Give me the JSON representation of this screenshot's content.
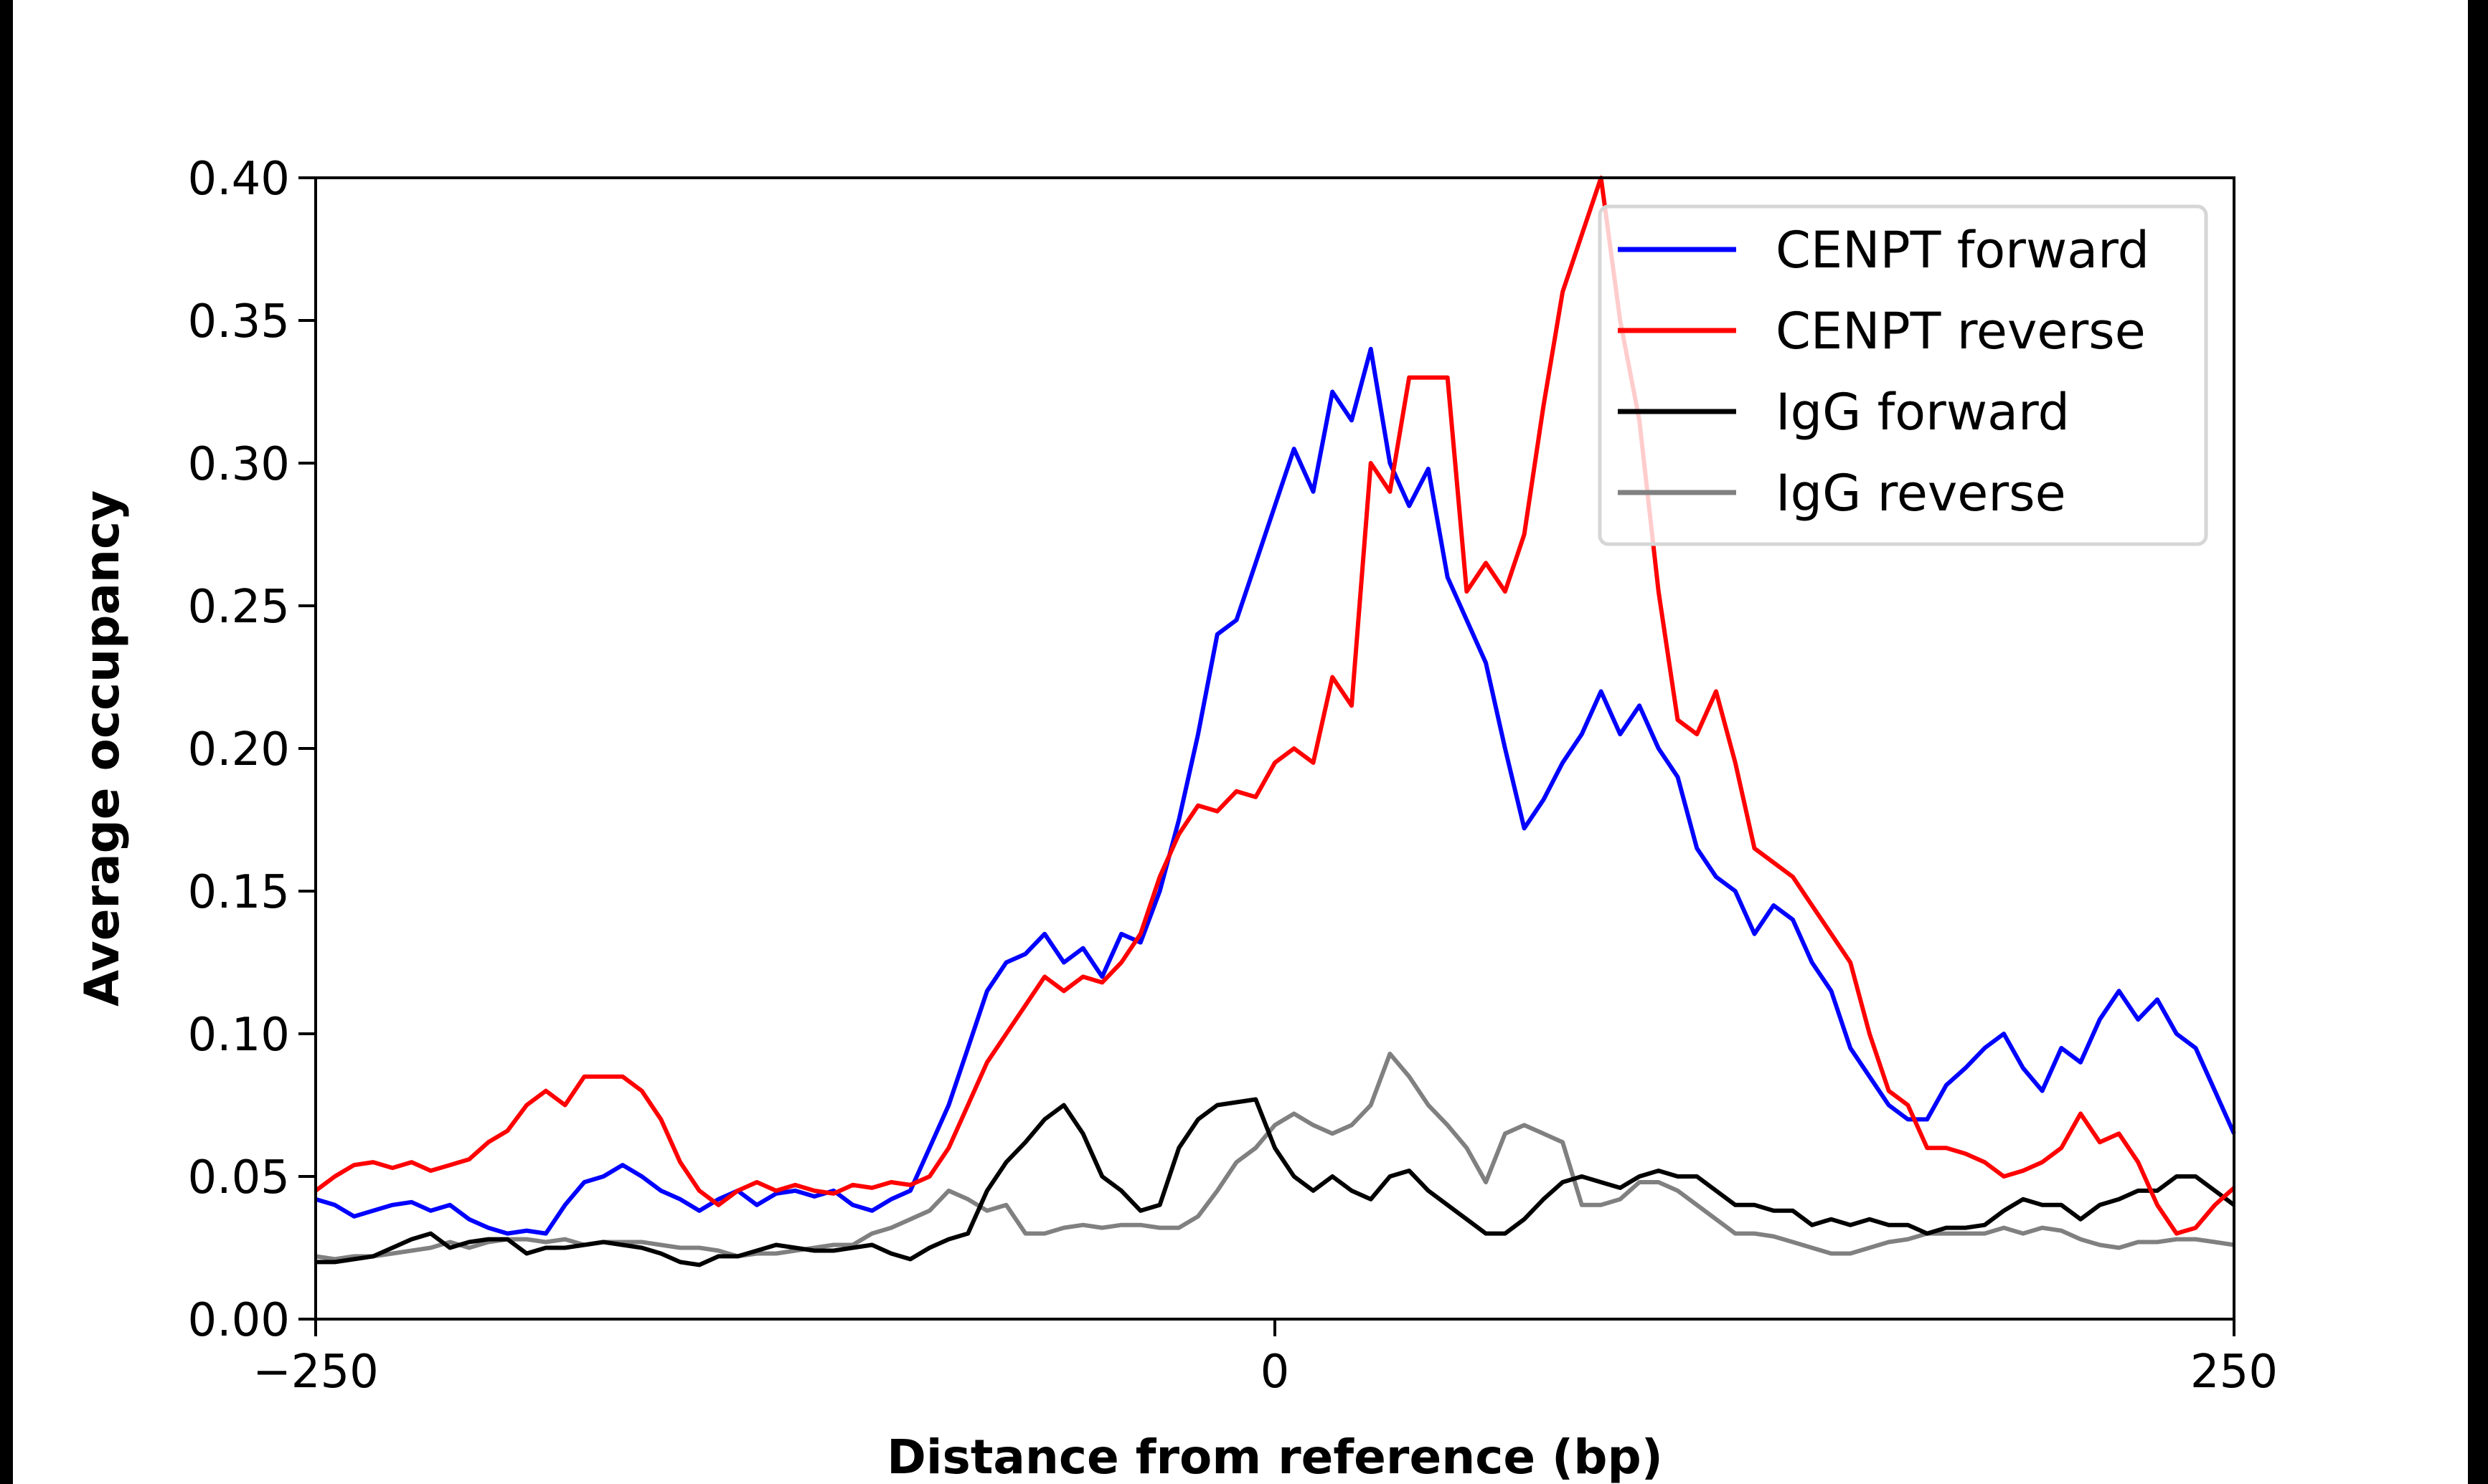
{
  "chart_data": {
    "type": "line",
    "title": "",
    "xlabel": "Distance from reference (bp)",
    "ylabel": "Average occupancy",
    "xlim": [
      -250,
      250
    ],
    "ylim": [
      0,
      0.4
    ],
    "xticks": [
      -250,
      0,
      250
    ],
    "xtick_labels": [
      "−250",
      "0",
      "250"
    ],
    "yticks": [
      0,
      0.05,
      0.1,
      0.15,
      0.2,
      0.25,
      0.3,
      0.35,
      0.4
    ],
    "ytick_labels": [
      "0.00",
      "0.05",
      "0.10",
      "0.15",
      "0.20",
      "0.25",
      "0.30",
      "0.35",
      "0.40"
    ],
    "grid": false,
    "legend_position": "top-right",
    "x": {
      "start": -250,
      "stop": 250,
      "step": 5
    },
    "series": [
      {
        "name": "CENPT forward",
        "color": "#0000ff",
        "values": [
          0.042,
          0.04,
          0.036,
          0.038,
          0.04,
          0.041,
          0.038,
          0.04,
          0.035,
          0.032,
          0.03,
          0.031,
          0.03,
          0.04,
          0.048,
          0.05,
          0.054,
          0.05,
          0.045,
          0.042,
          0.038,
          0.042,
          0.045,
          0.04,
          0.044,
          0.045,
          0.043,
          0.045,
          0.04,
          0.038,
          0.042,
          0.045,
          0.06,
          0.075,
          0.095,
          0.115,
          0.125,
          0.128,
          0.135,
          0.125,
          0.13,
          0.12,
          0.135,
          0.132,
          0.15,
          0.175,
          0.205,
          0.24,
          0.245,
          0.265,
          0.285,
          0.305,
          0.29,
          0.325,
          0.315,
          0.34,
          0.3,
          0.285,
          0.298,
          0.26,
          0.245,
          0.23,
          0.2,
          0.172,
          0.182,
          0.195,
          0.205,
          0.22,
          0.205,
          0.215,
          0.2,
          0.19,
          0.165,
          0.155,
          0.15,
          0.135,
          0.145,
          0.14,
          0.125,
          0.115,
          0.095,
          0.085,
          0.075,
          0.07,
          0.07,
          0.082,
          0.088,
          0.095,
          0.1,
          0.088,
          0.08,
          0.095,
          0.09,
          0.105,
          0.115,
          0.105,
          0.112,
          0.1,
          0.095,
          0.08,
          0.065
        ]
      },
      {
        "name": "CENPT reverse",
        "color": "#ff0000",
        "values": [
          0.045,
          0.05,
          0.054,
          0.055,
          0.053,
          0.055,
          0.052,
          0.054,
          0.056,
          0.062,
          0.066,
          0.075,
          0.08,
          0.075,
          0.085,
          0.085,
          0.085,
          0.08,
          0.07,
          0.055,
          0.045,
          0.04,
          0.045,
          0.048,
          0.045,
          0.047,
          0.045,
          0.044,
          0.047,
          0.046,
          0.048,
          0.047,
          0.05,
          0.06,
          0.075,
          0.09,
          0.1,
          0.11,
          0.12,
          0.115,
          0.12,
          0.118,
          0.125,
          0.135,
          0.155,
          0.17,
          0.18,
          0.178,
          0.185,
          0.183,
          0.195,
          0.2,
          0.195,
          0.225,
          0.215,
          0.3,
          0.29,
          0.33,
          0.33,
          0.33,
          0.255,
          0.265,
          0.255,
          0.275,
          0.32,
          0.36,
          0.38,
          0.4,
          0.35,
          0.315,
          0.255,
          0.21,
          0.205,
          0.22,
          0.195,
          0.165,
          0.16,
          0.155,
          0.145,
          0.135,
          0.125,
          0.1,
          0.08,
          0.075,
          0.06,
          0.06,
          0.058,
          0.055,
          0.05,
          0.052,
          0.055,
          0.06,
          0.072,
          0.062,
          0.065,
          0.055,
          0.04,
          0.03,
          0.032,
          0.04,
          0.046
        ]
      },
      {
        "name": "IgG forward",
        "color": "#000000",
        "values": [
          0.02,
          0.02,
          0.021,
          0.022,
          0.025,
          0.028,
          0.03,
          0.025,
          0.027,
          0.028,
          0.028,
          0.023,
          0.025,
          0.025,
          0.026,
          0.027,
          0.026,
          0.025,
          0.023,
          0.02,
          0.019,
          0.022,
          0.022,
          0.024,
          0.026,
          0.025,
          0.024,
          0.024,
          0.025,
          0.026,
          0.023,
          0.021,
          0.025,
          0.028,
          0.03,
          0.045,
          0.055,
          0.062,
          0.07,
          0.075,
          0.065,
          0.05,
          0.045,
          0.038,
          0.04,
          0.06,
          0.07,
          0.075,
          0.076,
          0.077,
          0.06,
          0.05,
          0.045,
          0.05,
          0.045,
          0.042,
          0.05,
          0.052,
          0.045,
          0.04,
          0.035,
          0.03,
          0.03,
          0.035,
          0.042,
          0.048,
          0.05,
          0.048,
          0.046,
          0.05,
          0.052,
          0.05,
          0.05,
          0.045,
          0.04,
          0.04,
          0.038,
          0.038,
          0.033,
          0.035,
          0.033,
          0.035,
          0.033,
          0.033,
          0.03,
          0.032,
          0.032,
          0.033,
          0.038,
          0.042,
          0.04,
          0.04,
          0.035,
          0.04,
          0.042,
          0.045,
          0.045,
          0.05,
          0.05,
          0.045,
          0.04
        ]
      },
      {
        "name": "IgG reverse",
        "color": "#808080",
        "values": [
          0.022,
          0.021,
          0.022,
          0.022,
          0.023,
          0.024,
          0.025,
          0.027,
          0.025,
          0.027,
          0.028,
          0.028,
          0.027,
          0.028,
          0.026,
          0.027,
          0.027,
          0.027,
          0.026,
          0.025,
          0.025,
          0.024,
          0.022,
          0.023,
          0.023,
          0.024,
          0.025,
          0.026,
          0.026,
          0.03,
          0.032,
          0.035,
          0.038,
          0.045,
          0.042,
          0.038,
          0.04,
          0.03,
          0.03,
          0.032,
          0.033,
          0.032,
          0.033,
          0.033,
          0.032,
          0.032,
          0.036,
          0.045,
          0.055,
          0.06,
          0.068,
          0.072,
          0.068,
          0.065,
          0.068,
          0.075,
          0.093,
          0.085,
          0.075,
          0.068,
          0.06,
          0.048,
          0.065,
          0.068,
          0.065,
          0.062,
          0.04,
          0.04,
          0.042,
          0.048,
          0.048,
          0.045,
          0.04,
          0.035,
          0.03,
          0.03,
          0.029,
          0.027,
          0.025,
          0.023,
          0.023,
          0.025,
          0.027,
          0.028,
          0.03,
          0.03,
          0.03,
          0.03,
          0.032,
          0.03,
          0.032,
          0.031,
          0.028,
          0.026,
          0.025,
          0.027,
          0.027,
          0.028,
          0.028,
          0.027,
          0.026
        ]
      }
    ]
  }
}
